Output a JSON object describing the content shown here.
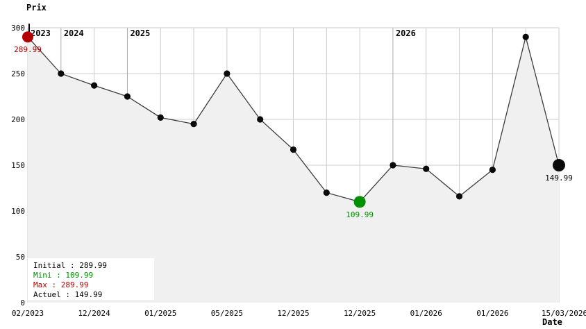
{
  "chart_data": {
    "type": "line",
    "title": "Prix",
    "xlabel": "Date",
    "ylim": [
      0,
      300
    ],
    "y_ticks": [
      0,
      50,
      100,
      150,
      200,
      250,
      300
    ],
    "grid": true,
    "values": [
      289.99,
      250,
      237,
      225,
      202,
      195,
      250,
      200,
      167,
      120,
      109.99,
      150,
      146,
      116,
      145,
      289.99,
      149.99
    ],
    "x_tick_labels": [
      {
        "text": "02/2023",
        "i": 0
      },
      {
        "text": "12/2024",
        "i": 2
      },
      {
        "text": "01/2025",
        "i": 4
      },
      {
        "text": "05/2025",
        "i": 6
      },
      {
        "text": "12/2025",
        "i": 8
      },
      {
        "text": "12/2025",
        "i": 10
      },
      {
        "text": "01/2026",
        "i": 12
      },
      {
        "text": "01/2026",
        "i": 14
      },
      {
        "text": "15/03/2026",
        "i": 16,
        "shift": 8
      }
    ],
    "year_labels": [
      {
        "text": "2023",
        "i": 0
      },
      {
        "text": "2024",
        "i": 1
      },
      {
        "text": "2025",
        "i": 3
      },
      {
        "text": "2026",
        "i": 11
      }
    ],
    "markers": [
      {
        "i": 0,
        "color": "#b30000",
        "r": 8,
        "name": "initial-price-marker"
      },
      {
        "i": 10,
        "color": "#009000",
        "r": 8.5,
        "name": "minimum-price-marker"
      },
      {
        "i": 16,
        "color": "#0a0a0a",
        "r": 9,
        "name": "current-price-marker"
      }
    ],
    "annotations": [
      {
        "i": 0,
        "text": "289.99",
        "color": "#b30000"
      },
      {
        "i": 10,
        "text": "109.99",
        "color": "#008a00"
      },
      {
        "i": 16,
        "text": "149.99",
        "color": "#000000"
      }
    ],
    "legend": [
      {
        "text": "Initial : 289.99",
        "color": "#000000"
      },
      {
        "text": "Mini : 109.99",
        "color": "#008a00"
      },
      {
        "text": "Max : 289.99",
        "color": "#b30000"
      },
      {
        "text": "Actuel : 149.99",
        "color": "#000000"
      }
    ],
    "colors": {
      "line": "#3c3c3c",
      "point": "#0a0a0a",
      "area_fill": "#f0f0f0",
      "grid": "#cccccc",
      "grid_year": "#ababab",
      "text": "#000000"
    }
  }
}
